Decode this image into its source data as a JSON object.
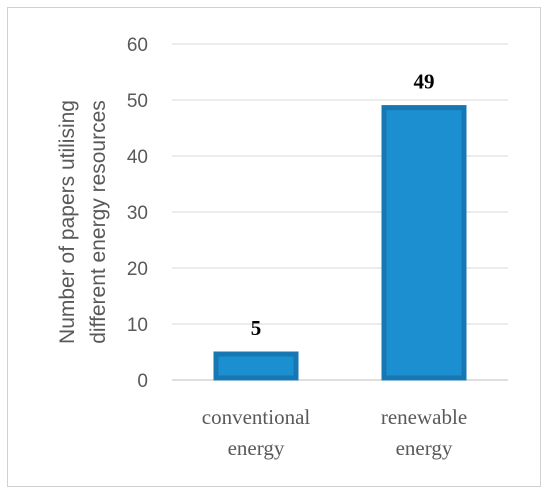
{
  "chart_data": {
    "type": "bar",
    "categories": [
      [
        "conventional",
        "energy"
      ],
      [
        "renewable",
        "energy"
      ]
    ],
    "values": [
      5,
      49
    ],
    "data_labels": [
      "5",
      "49"
    ],
    "ylabel": [
      "Number of papers utilising",
      "different energy resources"
    ],
    "ylim": [
      0,
      60
    ],
    "yticks": [
      "0",
      "10",
      "20",
      "30",
      "40",
      "50",
      "60"
    ],
    "grid": true,
    "legend": "none",
    "bar_color": "#1b8fcf",
    "bar_edge_color": "#1677b3"
  }
}
